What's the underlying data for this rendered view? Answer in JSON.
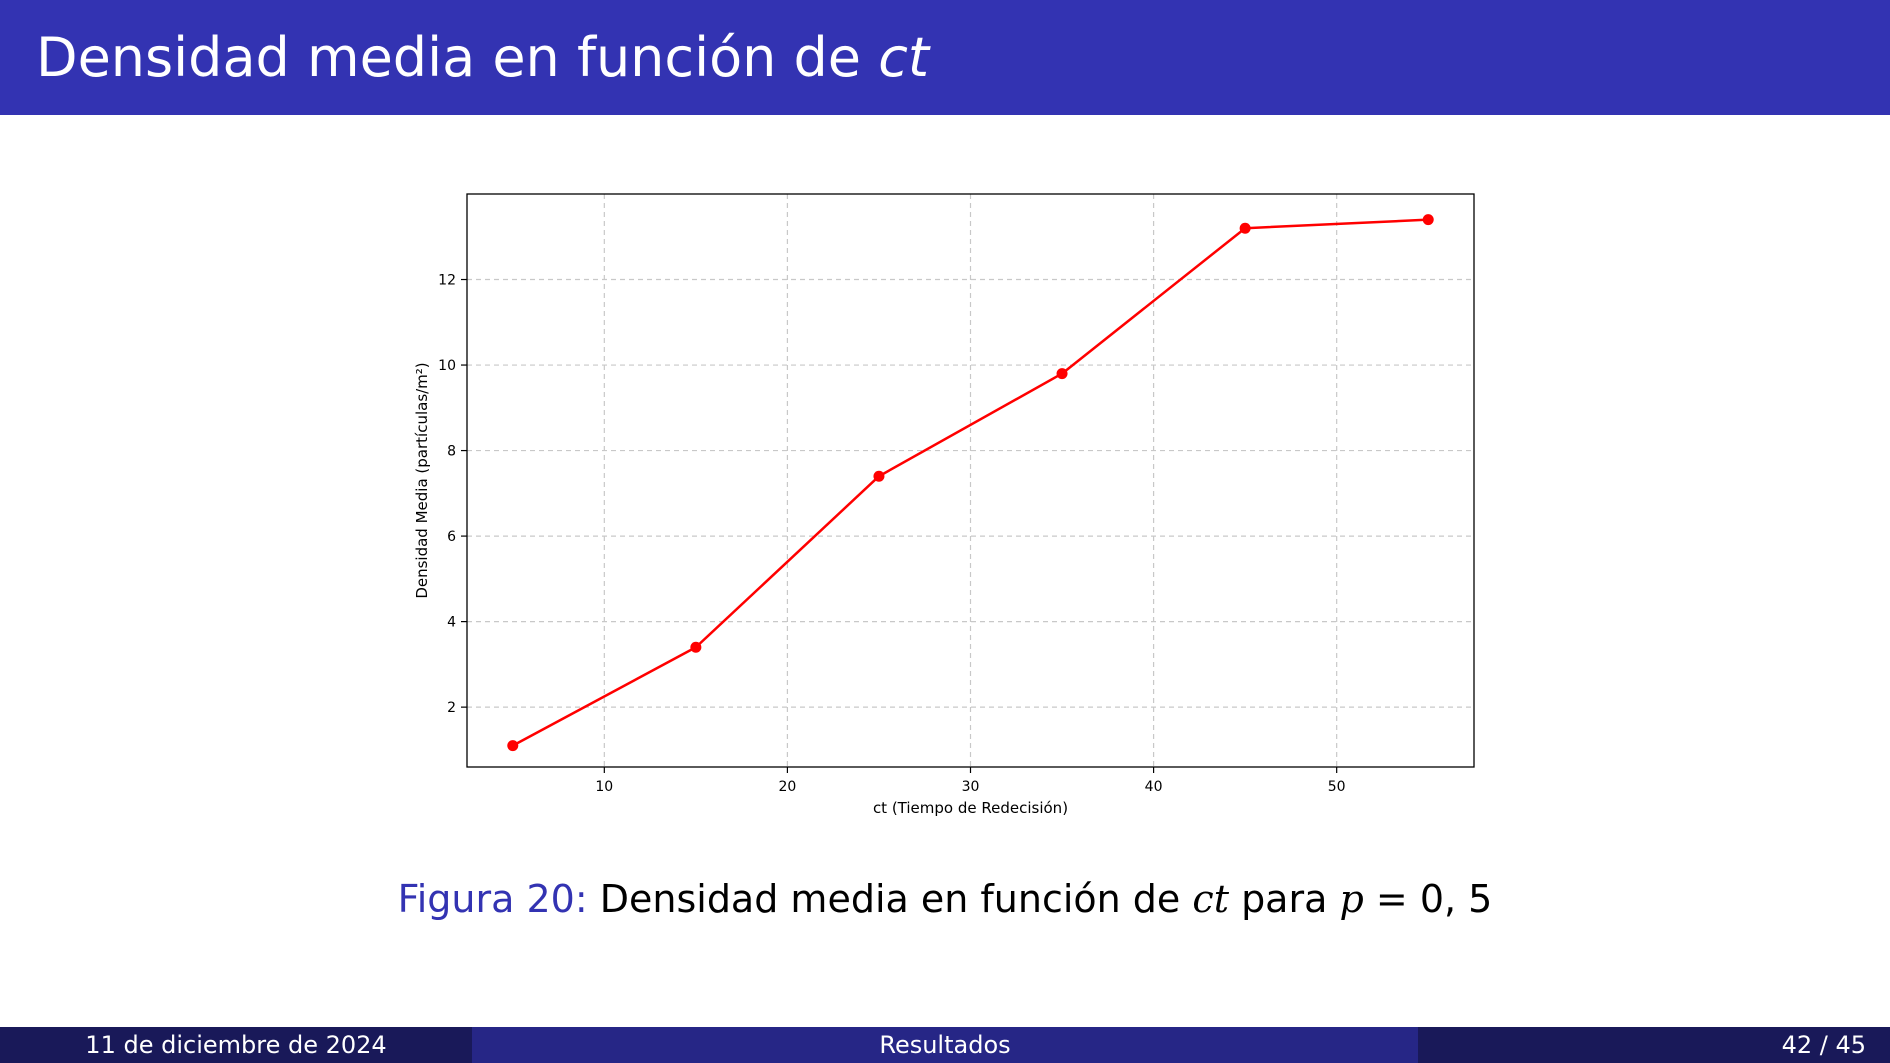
{
  "header": {
    "title_main": "Densidad media en función de ",
    "title_var": "ct"
  },
  "caption": {
    "label": "Figura 20:",
    "text_before": "Densidad media en función de",
    "var_ct": "ct",
    "text_mid": "para",
    "var_p": "p",
    "text_end": "= 0, 5"
  },
  "footer": {
    "date": "11 de diciembre de 2024",
    "section": "Resultados",
    "page": "42 / 45"
  },
  "colors": {
    "accent": "#3333b2",
    "line": "#ff0000",
    "grid": "#c8c8c8"
  },
  "chart_data": {
    "type": "line",
    "title": "",
    "xlabel": "ct (Tiempo de Redecisión)",
    "ylabel": "Densidad Media (partículas/m²)",
    "x": [
      5,
      15,
      25,
      35,
      45,
      55
    ],
    "series": [
      {
        "values": [
          1.1,
          3.4,
          7.4,
          9.8,
          13.2,
          13.4
        ]
      }
    ],
    "xlim": [
      2.5,
      57.5
    ],
    "ylim": [
      0.6,
      14.0
    ],
    "xticks": [
      10,
      20,
      30,
      40,
      50
    ],
    "yticks": [
      2,
      4,
      6,
      8,
      10,
      12
    ],
    "grid": true,
    "grid_style": "dashed",
    "marker": "circle",
    "legend": "none"
  }
}
